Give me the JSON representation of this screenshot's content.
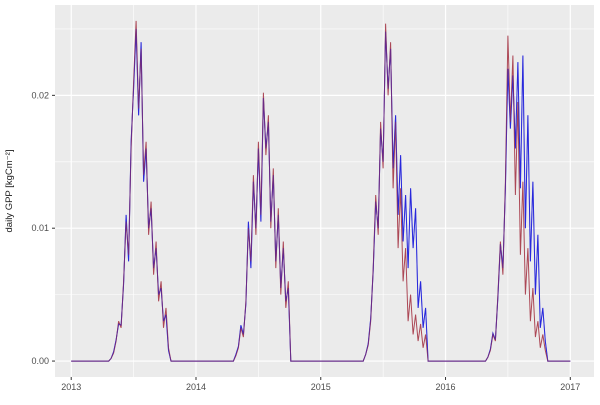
{
  "figure": {
    "ylabel": "daily GPP [kgCm⁻²]",
    "panel_background": "#EBEBEB",
    "grid_color": "#FFFFFF",
    "tick_mark_color": "#333333",
    "tick_label_color": "#4D4D4D",
    "axis_title_color": "#1A1A1A"
  },
  "chart_data": {
    "type": "line",
    "title": "",
    "xlabel": "",
    "ylabel": "daily GPP [kgCm⁻²]",
    "grid": true,
    "legend_position": "none",
    "x": {
      "start": 2013,
      "step": 0.02,
      "n": 201
    },
    "xlim": [
      2012.87,
      2017.19
    ],
    "ylim": [
      -0.0012,
      0.0268
    ],
    "xticks": {
      "values": [
        2013,
        2014,
        2015,
        2016,
        2017
      ],
      "labels": [
        "2013",
        "2014",
        "2015",
        "2016",
        "2017"
      ],
      "minor": [
        2013.5,
        2014.5,
        2015.5,
        2016.5
      ]
    },
    "yticks": {
      "values": [
        0,
        0.01,
        0.02
      ],
      "labels": [
        "0.00",
        "0.01",
        "0.02"
      ],
      "minor": [
        0.005,
        0.015,
        0.025
      ]
    },
    "series": [
      {
        "name": "blue",
        "color": "#2828DC",
        "values": [
          0,
          0,
          0,
          0,
          0,
          0,
          0,
          0,
          0,
          0,
          0,
          0,
          0,
          0,
          0,
          0,
          0.0002,
          0.0007,
          0.0016,
          0.0028,
          0.0027,
          0.0058,
          0.011,
          0.0075,
          0.0165,
          0.0205,
          0.025,
          0.0185,
          0.024,
          0.0135,
          0.016,
          0.01,
          0.0115,
          0.007,
          0.0085,
          0.005,
          0.0055,
          0.003,
          0.0035,
          0.0008,
          0,
          0,
          0,
          0,
          0,
          0,
          0,
          0,
          0,
          0,
          0,
          0,
          0,
          0,
          0,
          0,
          0,
          0,
          0,
          0,
          0,
          0,
          0,
          0,
          0,
          0,
          0.0005,
          0.0011,
          0.0027,
          0.002,
          0.0043,
          0.0105,
          0.007,
          0.0135,
          0.01,
          0.016,
          0.0105,
          0.0198,
          0.016,
          0.018,
          0.0105,
          0.014,
          0.0075,
          0.011,
          0.0055,
          0.0085,
          0.0045,
          0.0055,
          0,
          0,
          0,
          0,
          0,
          0,
          0,
          0,
          0,
          0,
          0,
          0,
          0,
          0,
          0,
          0,
          0,
          0,
          0,
          0,
          0,
          0,
          0,
          0,
          0,
          0,
          0,
          0,
          0,
          0,
          0.0005,
          0.0013,
          0.0032,
          0.0068,
          0.012,
          0.01,
          0.0175,
          0.015,
          0.0248,
          0.0205,
          0.0235,
          0.0145,
          0.0185,
          0.011,
          0.0155,
          0.009,
          0.0125,
          0.007,
          0.013,
          0.0085,
          0.0115,
          0.004,
          0.006,
          0.0025,
          0.004,
          0,
          0,
          0,
          0,
          0,
          0,
          0,
          0,
          0,
          0,
          0,
          0,
          0,
          0,
          0,
          0,
          0,
          0,
          0,
          0,
          0,
          0,
          0,
          0,
          0.0003,
          0.0009,
          0.0021,
          0.0016,
          0.0048,
          0.0088,
          0.007,
          0.013,
          0.022,
          0.0175,
          0.0215,
          0.016,
          0.0225,
          0.013,
          0.023,
          0.01,
          0.0185,
          0.0075,
          0.0135,
          0.005,
          0.0095,
          0.0025,
          0.004,
          0.0015,
          0,
          0,
          0,
          0,
          0,
          0,
          0,
          0,
          0,
          0
        ]
      },
      {
        "name": "red",
        "color": "#A12B3C",
        "values": [
          0,
          0,
          0,
          0,
          0,
          0,
          0,
          0,
          0,
          0,
          0,
          0,
          0,
          0,
          0,
          0,
          0.0002,
          0.0006,
          0.0015,
          0.003,
          0.0025,
          0.006,
          0.0105,
          0.008,
          0.016,
          0.021,
          0.0256,
          0.019,
          0.0235,
          0.014,
          0.0165,
          0.0095,
          0.012,
          0.0065,
          0.009,
          0.0045,
          0.006,
          0.0025,
          0.004,
          0.001,
          0,
          0,
          0,
          0,
          0,
          0,
          0,
          0,
          0,
          0,
          0,
          0,
          0,
          0,
          0,
          0,
          0,
          0,
          0,
          0,
          0,
          0,
          0,
          0,
          0,
          0,
          0.0004,
          0.001,
          0.0025,
          0.0018,
          0.0045,
          0.01,
          0.0075,
          0.014,
          0.0095,
          0.0165,
          0.011,
          0.0202,
          0.0155,
          0.0185,
          0.01,
          0.0145,
          0.007,
          0.0115,
          0.005,
          0.009,
          0.004,
          0.006,
          0,
          0,
          0,
          0,
          0,
          0,
          0,
          0,
          0,
          0,
          0,
          0,
          0,
          0,
          0,
          0,
          0,
          0,
          0,
          0,
          0,
          0,
          0,
          0,
          0,
          0,
          0,
          0,
          0,
          0,
          0.0005,
          0.0012,
          0.003,
          0.007,
          0.0125,
          0.0095,
          0.018,
          0.0145,
          0.0254,
          0.02,
          0.024,
          0.013,
          0.018,
          0.0085,
          0.013,
          0.006,
          0.0085,
          0.003,
          0.005,
          0.002,
          0.0035,
          0.0015,
          0.0028,
          0.001,
          0.002,
          0,
          0,
          0,
          0,
          0,
          0,
          0,
          0,
          0,
          0,
          0,
          0,
          0,
          0,
          0,
          0,
          0,
          0,
          0,
          0,
          0,
          0,
          0,
          0,
          0.0003,
          0.0008,
          0.002,
          0.0015,
          0.005,
          0.009,
          0.0065,
          0.0135,
          0.0245,
          0.018,
          0.023,
          0.0125,
          0.0195,
          0.008,
          0.0135,
          0.005,
          0.0085,
          0.003,
          0.0055,
          0.0018,
          0.003,
          0.001,
          0.002,
          0.0008,
          0,
          0,
          0,
          0,
          0,
          0,
          0,
          0,
          0,
          0
        ]
      }
    ]
  }
}
